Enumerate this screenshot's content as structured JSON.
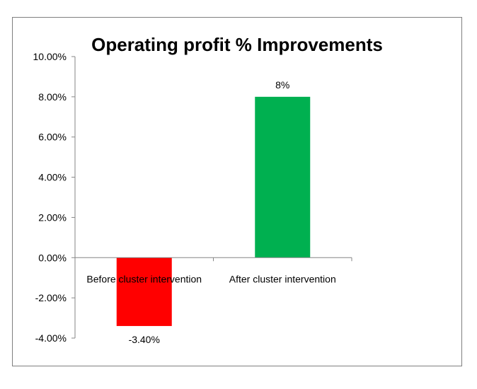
{
  "chart_data": {
    "type": "bar",
    "title": "Operating profit % Improvements",
    "xlabel": "",
    "ylabel": "",
    "categories": [
      "Before cluster intervention",
      "After cluster intervention"
    ],
    "values": [
      -3.4,
      8.0
    ],
    "data_labels": [
      "-3.40%",
      "8%"
    ],
    "bar_colors": [
      "#ff0000",
      "#00b050"
    ],
    "ylim": [
      -4,
      10
    ],
    "yticks": [
      10,
      8,
      6,
      4,
      2,
      0,
      -2,
      -4
    ],
    "ytick_labels": [
      "10.00%",
      "8.00%",
      "6.00%",
      "4.00%",
      "2.00%",
      "0.00%",
      "-2.00%",
      "-4.00%"
    ],
    "grid": false,
    "legend": "none"
  }
}
